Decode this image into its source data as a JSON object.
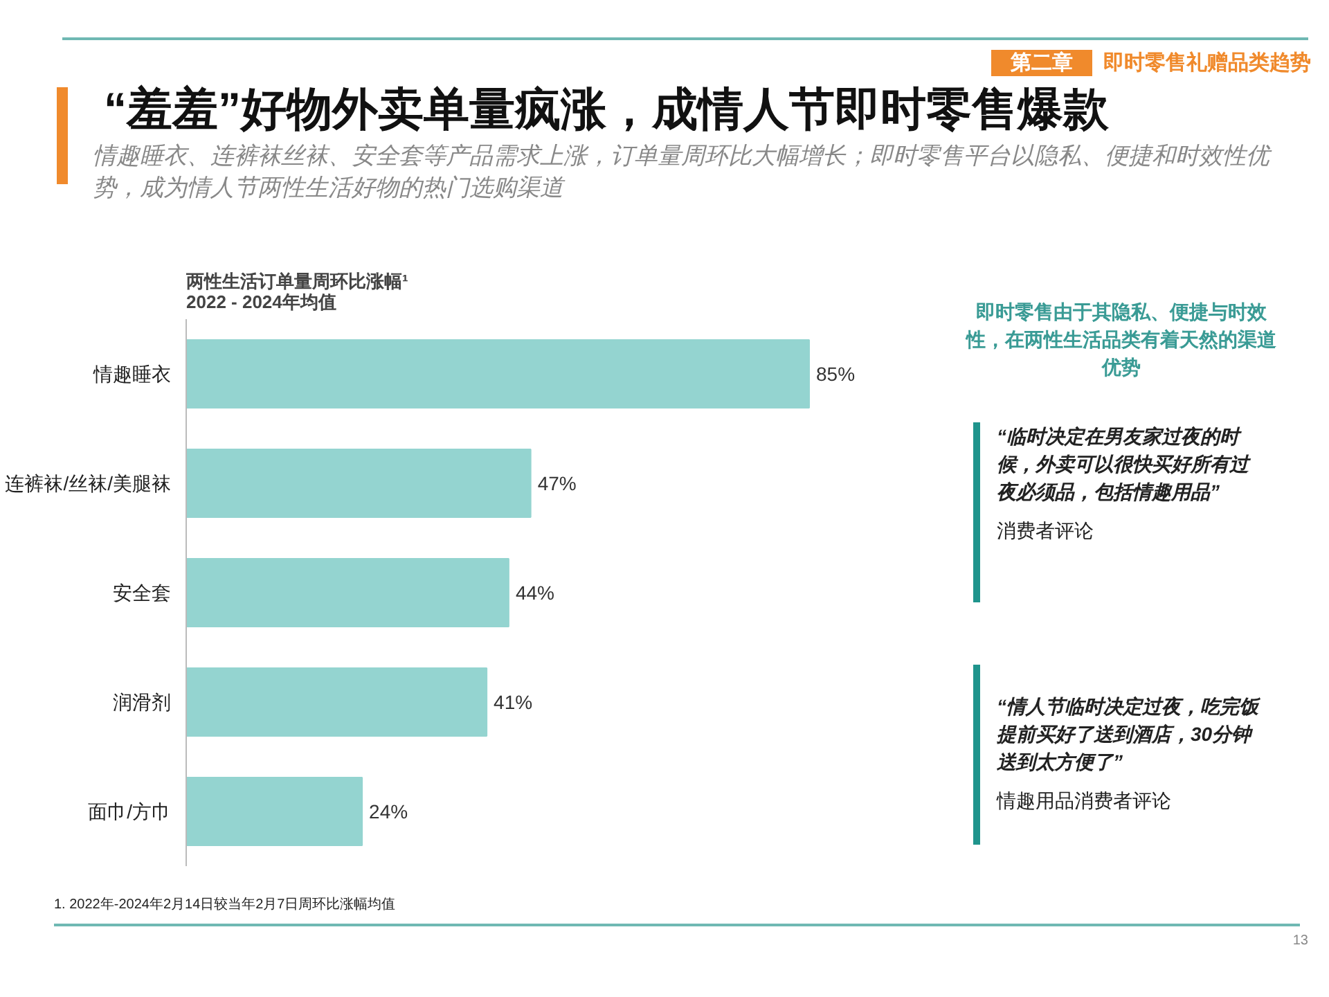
{
  "chart_data": {
    "type": "bar",
    "orientation": "horizontal",
    "title": "“羞羞”好物外卖单量疯涨，成情人节即时零售爆款",
    "subtitle": "情趣睡衣、连裤袜丝袜、安全套等产品需求上涨，订单量周环比大幅增长；即时零售平台以隐私、便捷和时效性优势，成为情人节两性生活好物的热门选购渠道",
    "categories": [
      "情趣睡衣",
      "连裤袜/丝袜/美腿袜",
      "安全套",
      "润滑剂",
      "面巾/方巾"
    ],
    "values": [
      85,
      47,
      44,
      41,
      24
    ],
    "value_labels": [
      "85%",
      "47%",
      "44%",
      "41%",
      "24%"
    ],
    "color": "#94d4d0",
    "grid": false,
    "annotations": [
      "第二章",
      "即时零售礼赠品类趋势",
      "两性生活订单量周环比涨幅¹",
      "2022 - 2024年均值",
      "即时零售由于其隐私、便捷与时效性，在两性生活品类有着天然的渠道优势",
      "“临时决定在男友家过夜的时候，外卖可以很快买好所有过夜必须品，包括情趣用品”",
      "消费者评论",
      "“情人节临时决定过夜，吃完饭提前买好了送到酒店，30分钟送到太方便了”",
      "情趣用品消费者评论",
      "1. 2022年-2024年2月14日较当年2月7日周环比涨幅均值",
      "13"
    ]
  }
}
